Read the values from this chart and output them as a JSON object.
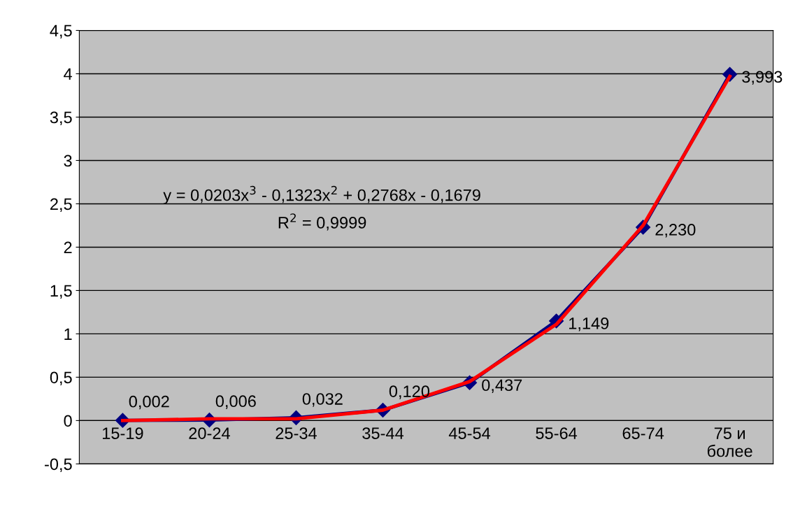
{
  "chart_data": {
    "type": "line",
    "categories": [
      "15-19",
      "20-24",
      "25-34",
      "35-44",
      "45-54",
      "55-64",
      "65-74",
      "75 и\nболее"
    ],
    "series": [
      {
        "color": "#000080",
        "values": [
          0.002,
          0.006,
          0.032,
          0.12,
          0.437,
          1.149,
          2.23,
          3.993
        ],
        "value_labels": [
          "0,002",
          "0,006",
          "0,032",
          "0,120",
          "0,437",
          "1,149",
          "2,230",
          "3,993"
        ],
        "marker": "diamond"
      },
      {
        "color": "#ff0000",
        "values": [
          0.0,
          0.02,
          0.02,
          0.12,
          0.45,
          1.11,
          2.25,
          3.97
        ],
        "marker": "none"
      }
    ],
    "ylim": [
      -0.5,
      4.5
    ],
    "yticks": [
      {
        "value": -0.5,
        "label": "-0,5"
      },
      0,
      {
        "value": 0.5,
        "label": "0,5"
      },
      1,
      {
        "value": 1.5,
        "label": "1,5"
      },
      2,
      {
        "value": 2.5,
        "label": "2,5"
      },
      3,
      {
        "value": 3.5,
        "label": "3,5"
      },
      4,
      {
        "value": 4.5,
        "label": "4,5"
      }
    ],
    "grid": "y",
    "annotations": [
      "y = 0,0203x$^{3}$ - 0,1323x$^{2}$ + 0,2768x - 0,1679",
      "R$^{2}$ = 0,9999"
    ]
  }
}
